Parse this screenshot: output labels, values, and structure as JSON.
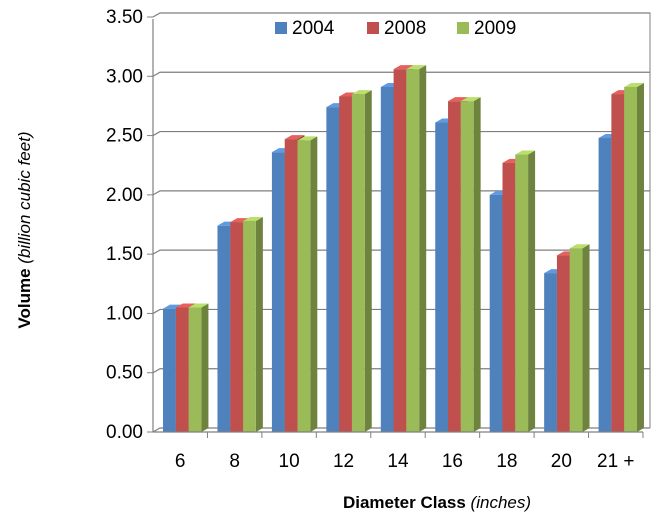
{
  "chart_data": {
    "type": "bar",
    "categories": [
      "6",
      "8",
      "10",
      "12",
      "14",
      "16",
      "18",
      "20",
      "21 +"
    ],
    "series": [
      {
        "name": "2004",
        "color": "#4F81BD",
        "values": [
          1.04,
          1.74,
          2.36,
          2.74,
          2.91,
          2.61,
          2.0,
          1.34,
          2.48
        ]
      },
      {
        "name": "2008",
        "color": "#C0504D",
        "values": [
          1.05,
          1.77,
          2.47,
          2.83,
          3.06,
          2.79,
          2.27,
          1.49,
          2.85
        ]
      },
      {
        "name": "2009",
        "color": "#9BBB59",
        "values": [
          1.05,
          1.78,
          2.46,
          2.85,
          3.06,
          2.79,
          2.34,
          1.55,
          2.91
        ]
      }
    ],
    "ylim": [
      0,
      3.5
    ],
    "yticks": [
      "0.00",
      "0.50",
      "1.00",
      "1.50",
      "2.00",
      "2.50",
      "3.00",
      "3.50"
    ],
    "ylabel_bold": "Volume",
    "ylabel_italic": "(billion cubic feet)",
    "xlabel_bold": "Diameter Class",
    "xlabel_italic": "(inches)",
    "grid": true,
    "legend": "top"
  }
}
